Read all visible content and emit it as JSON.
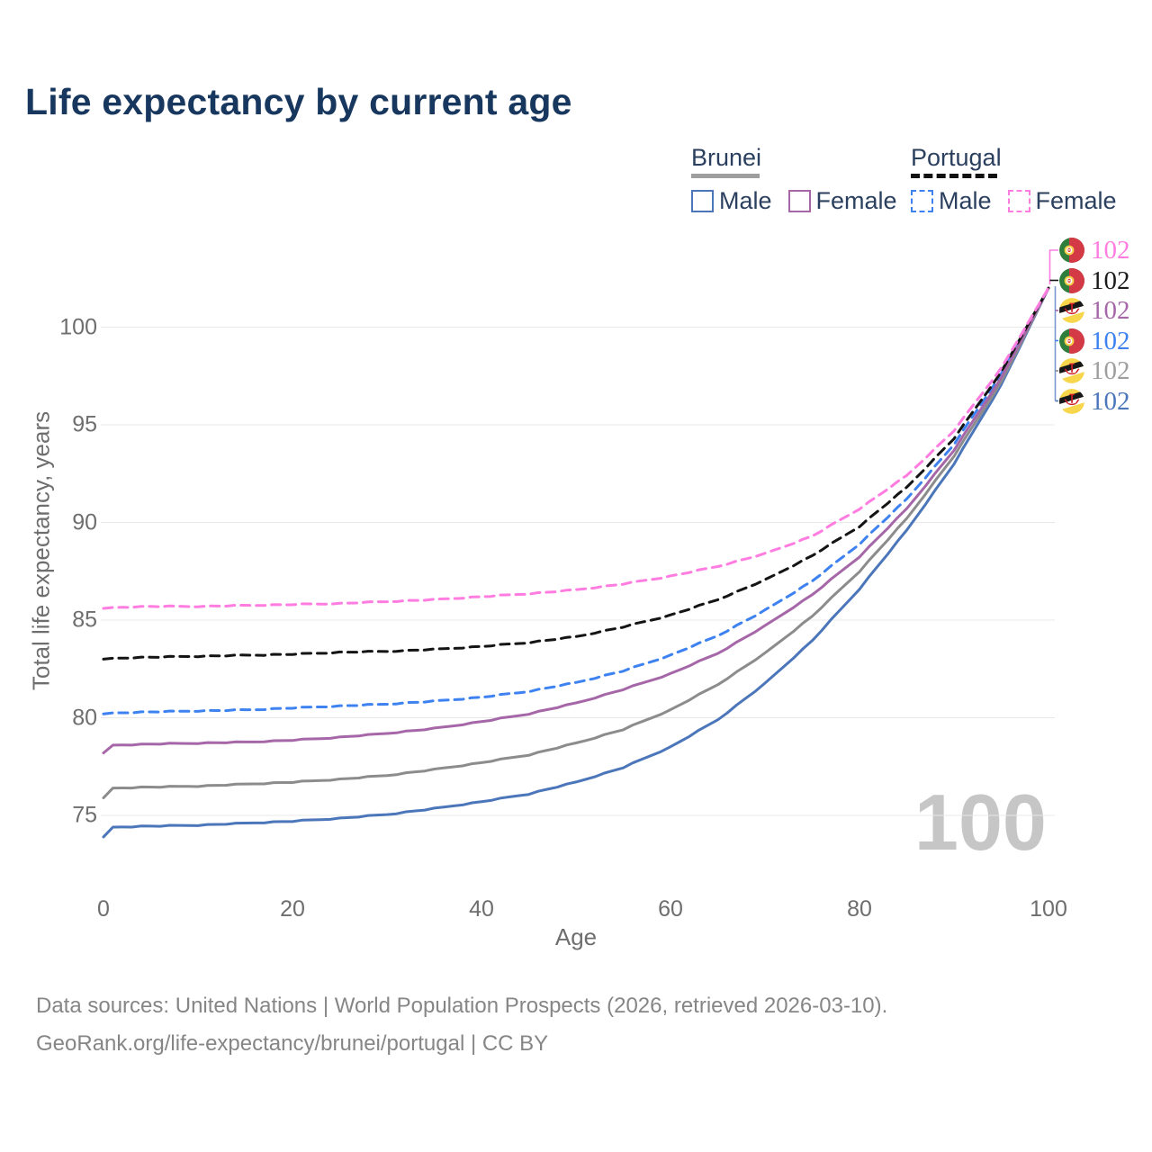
{
  "title": "Life expectancy by current age",
  "watermark": "100",
  "legend": {
    "groups": [
      {
        "name": "Brunei",
        "line_style": "solid",
        "underline_color": "#9e9e9e",
        "items": [
          {
            "label": "Male",
            "color": "#4b76ba"
          },
          {
            "label": "Female",
            "color": "#a667a8"
          }
        ]
      },
      {
        "name": "Portugal",
        "line_style": "dashed",
        "underline_color": "#111111",
        "items": [
          {
            "label": "Male",
            "color": "#3d82f0"
          },
          {
            "label": "Female",
            "color": "#ff7de1"
          }
        ]
      }
    ]
  },
  "chart_data": {
    "type": "line",
    "title": "Life expectancy by current age",
    "xlabel": "Age",
    "ylabel": "Total life expectancy, years",
    "xlim": [
      0,
      100
    ],
    "ylim": [
      73,
      103
    ],
    "xticks": [
      0,
      20,
      40,
      60,
      80,
      100
    ],
    "yticks": [
      75,
      80,
      85,
      90,
      95,
      100
    ],
    "grid": true,
    "grid_color": "#e8e8e8",
    "tick_color": "#6e6e6e",
    "leader_bracket_color": "#7b97cf",
    "x": [
      0,
      1,
      5,
      10,
      15,
      20,
      25,
      30,
      35,
      40,
      45,
      50,
      55,
      60,
      65,
      70,
      75,
      80,
      85,
      90,
      95,
      100
    ],
    "series": [
      {
        "name": "Portugal Female",
        "country": "Portugal",
        "sex": "Female",
        "flag": "pt",
        "dash": true,
        "color": "#ff7de1",
        "label_color": "#ff7de1",
        "end_value": "102",
        "values": [
          85.6,
          85.65,
          85.7,
          85.7,
          85.75,
          85.8,
          85.85,
          85.95,
          86.05,
          86.2,
          86.35,
          86.55,
          86.85,
          87.25,
          87.75,
          88.4,
          89.3,
          90.7,
          92.4,
          94.7,
          97.9,
          102
        ]
      },
      {
        "name": "Portugal Total",
        "country": "Portugal",
        "sex": "Total",
        "flag": "pt",
        "dash": true,
        "color": "#141414",
        "label_color": "#1a1a1a",
        "end_value": "102",
        "values": [
          83.0,
          83.05,
          83.1,
          83.15,
          83.2,
          83.25,
          83.35,
          83.4,
          83.5,
          83.65,
          83.85,
          84.15,
          84.65,
          85.25,
          86.05,
          87.05,
          88.3,
          89.8,
          91.8,
          94.3,
          97.7,
          102
        ]
      },
      {
        "name": "Brunei Female",
        "country": "Brunei",
        "sex": "Female",
        "flag": "bn",
        "dash": false,
        "color": "#a667a8",
        "label_color": "#a667a8",
        "end_value": "102",
        "values": [
          78.2,
          78.6,
          78.65,
          78.7,
          78.75,
          78.85,
          79.0,
          79.2,
          79.45,
          79.8,
          80.2,
          80.75,
          81.45,
          82.25,
          83.3,
          84.7,
          86.3,
          88.25,
          90.7,
          93.7,
          97.4,
          102
        ]
      },
      {
        "name": "Portugal Male",
        "country": "Portugal",
        "sex": "Male",
        "flag": "pt",
        "dash": true,
        "color": "#3d82f0",
        "label_color": "#3d82f0",
        "end_value": "102",
        "values": [
          80.2,
          80.25,
          80.3,
          80.35,
          80.4,
          80.5,
          80.6,
          80.7,
          80.85,
          81.05,
          81.35,
          81.8,
          82.4,
          83.2,
          84.2,
          85.5,
          87.0,
          88.9,
          91.2,
          94.0,
          97.6,
          102
        ]
      },
      {
        "name": "Brunei Total",
        "country": "Brunei",
        "sex": "Total",
        "flag": "bn",
        "dash": false,
        "color": "#8c8c8c",
        "label_color": "#9e9e9e",
        "end_value": "102",
        "values": [
          75.9,
          76.4,
          76.45,
          76.5,
          76.6,
          76.7,
          76.85,
          77.05,
          77.35,
          77.7,
          78.1,
          78.7,
          79.4,
          80.4,
          81.7,
          83.3,
          85.2,
          87.5,
          90.2,
          93.4,
          97.2,
          102
        ]
      },
      {
        "name": "Brunei Male",
        "country": "Brunei",
        "sex": "Male",
        "flag": "bn",
        "dash": false,
        "color": "#4b76ba",
        "label_color": "#4b76ba",
        "end_value": "102",
        "values": [
          73.9,
          74.4,
          74.45,
          74.5,
          74.6,
          74.7,
          74.85,
          75.05,
          75.35,
          75.7,
          76.1,
          76.7,
          77.45,
          78.5,
          79.9,
          81.75,
          83.95,
          86.6,
          89.6,
          93.0,
          97.05,
          102
        ]
      }
    ]
  },
  "footer": {
    "line1": "Data sources: United Nations | World Population Prospects (2026, retrieved 2026-03-10).",
    "line2": "GeoRank.org/life-expectancy/brunei/portugal | CC BY"
  }
}
